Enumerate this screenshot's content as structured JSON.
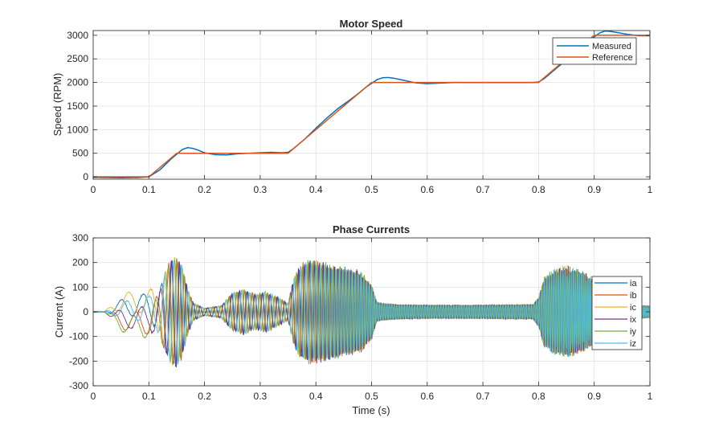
{
  "colors": {
    "measured": "#0072BD",
    "reference": "#D95319",
    "ia": "#0072BD",
    "ib": "#D95319",
    "ic": "#EDB120",
    "ix": "#7E2F8E",
    "iy": "#77AC30",
    "iz": "#4DBEEE",
    "grid": "#e3e3e3",
    "axis": "#262626"
  },
  "chart_data": [
    {
      "type": "line",
      "title": "Motor Speed",
      "xlabel": "",
      "ylabel": "Speed (RPM)",
      "xlim": [
        0,
        1
      ],
      "ylim": [
        -50,
        3100
      ],
      "xticks": [
        0,
        0.1,
        0.2,
        0.3,
        0.4,
        0.5,
        0.6,
        0.7,
        0.8,
        0.9,
        1
      ],
      "xtick_labels": [
        "0",
        "0.1",
        "0.2",
        "0.3",
        "0.4",
        "0.5",
        "0.6",
        "0.7",
        "0.8",
        "0.9",
        "1"
      ],
      "yticks": [
        0,
        500,
        1000,
        1500,
        2000,
        2500,
        3000
      ],
      "ytick_labels": [
        "0",
        "500",
        "1000",
        "1500",
        "2000",
        "2500",
        "3000"
      ],
      "grid": true,
      "legend_position": "top-right",
      "series": [
        {
          "name": "Measured",
          "x": [
            0,
            0.02,
            0.05,
            0.08,
            0.1,
            0.12,
            0.14,
            0.16,
            0.17,
            0.18,
            0.19,
            0.2,
            0.22,
            0.24,
            0.26,
            0.28,
            0.3,
            0.32,
            0.34,
            0.35,
            0.36,
            0.38,
            0.4,
            0.42,
            0.44,
            0.46,
            0.48,
            0.49,
            0.5,
            0.51,
            0.52,
            0.53,
            0.54,
            0.56,
            0.58,
            0.6,
            0.62,
            0.65,
            0.7,
            0.75,
            0.79,
            0.8,
            0.81,
            0.83,
            0.85,
            0.87,
            0.89,
            0.91,
            0.92,
            0.93,
            0.94,
            0.96,
            0.98,
            1.0
          ],
          "y": [
            -10,
            -15,
            -20,
            -15,
            0,
            150,
            380,
            580,
            620,
            600,
            560,
            510,
            470,
            465,
            490,
            500,
            510,
            520,
            510,
            520,
            600,
            800,
            1030,
            1250,
            1450,
            1620,
            1800,
            1900,
            1980,
            2060,
            2100,
            2105,
            2090,
            2040,
            1990,
            1975,
            1985,
            2000,
            2000,
            2000,
            2000,
            2010,
            2080,
            2280,
            2480,
            2680,
            2880,
            3050,
            3090,
            3080,
            3060,
            3020,
            2990,
            2990
          ]
        },
        {
          "name": "Reference",
          "x": [
            0,
            0.1,
            0.15,
            0.35,
            0.5,
            0.8,
            0.9,
            1.0
          ],
          "y": [
            0,
            0,
            500,
            500,
            2000,
            2000,
            3000,
            3000
          ]
        }
      ]
    },
    {
      "type": "line",
      "title": "Phase Currents",
      "xlabel": "Time (s)",
      "ylabel": "Current (A)",
      "xlim": [
        0,
        1
      ],
      "ylim": [
        -300,
        300
      ],
      "xticks": [
        0,
        0.1,
        0.2,
        0.3,
        0.4,
        0.5,
        0.6,
        0.7,
        0.8,
        0.9,
        1
      ],
      "xtick_labels": [
        "0",
        "0.1",
        "0.2",
        "0.3",
        "0.4",
        "0.5",
        "0.6",
        "0.7",
        "0.8",
        "0.9",
        "1"
      ],
      "yticks": [
        -300,
        -200,
        -100,
        0,
        100,
        200,
        300
      ],
      "ytick_labels": [
        "-300",
        "-200",
        "-100",
        "0",
        "100",
        "200",
        "300"
      ],
      "grid": true,
      "legend_position": "right",
      "envelope": {
        "t": [
          0,
          0.02,
          0.03,
          0.05,
          0.08,
          0.1,
          0.12,
          0.13,
          0.14,
          0.15,
          0.16,
          0.17,
          0.18,
          0.2,
          0.23,
          0.25,
          0.27,
          0.29,
          0.31,
          0.33,
          0.35,
          0.36,
          0.37,
          0.38,
          0.39,
          0.4,
          0.42,
          0.45,
          0.48,
          0.5,
          0.51,
          0.52,
          0.55,
          0.6,
          0.65,
          0.7,
          0.75,
          0.79,
          0.8,
          0.81,
          0.83,
          0.85,
          0.88,
          0.9,
          0.92,
          0.94,
          0.96,
          1.0
        ],
        "amplitude": [
          0,
          0,
          10,
          30,
          45,
          55,
          90,
          160,
          210,
          220,
          180,
          90,
          35,
          15,
          25,
          75,
          90,
          70,
          80,
          60,
          35,
          130,
          180,
          200,
          205,
          200,
          190,
          175,
          160,
          110,
          40,
          35,
          30,
          28,
          28,
          28,
          30,
          30,
          60,
          140,
          170,
          180,
          160,
          130,
          75,
          40,
          30,
          25
        ]
      },
      "series": [
        {
          "name": "ia",
          "phase_deg": 0,
          "startup_offset": 25
        },
        {
          "name": "ib",
          "phase_deg": 120,
          "startup_offset": -45
        },
        {
          "name": "ic",
          "phase_deg": 240,
          "startup_offset": 45
        },
        {
          "name": "ix",
          "phase_deg": 30,
          "startup_offset": -30
        },
        {
          "name": "iy",
          "phase_deg": 150,
          "startup_offset": -60
        },
        {
          "name": "iz",
          "phase_deg": 270,
          "startup_offset": 10
        }
      ]
    }
  ]
}
